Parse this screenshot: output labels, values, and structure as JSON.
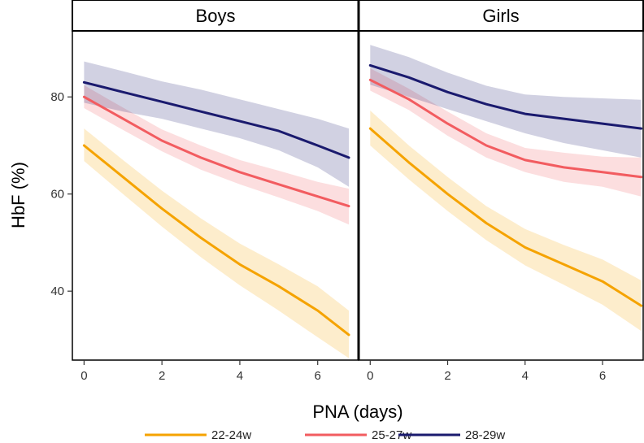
{
  "chart_data": {
    "type": "line",
    "xlabel": "PNA (days)",
    "ylabel": "HbF (%)",
    "xlim": [
      -0.3,
      7.05
    ],
    "ylim": [
      25.8,
      93.6
    ],
    "xticks": [
      0,
      2,
      4,
      6
    ],
    "yticks": [
      40,
      60,
      80
    ],
    "band_color_opacity": 0.2,
    "series_meta": [
      {
        "name": "22-24w",
        "color": "#f5a300"
      },
      {
        "name": "25-27w",
        "color": "#f25c60"
      },
      {
        "name": "28-29w",
        "color": "#1a1a6e"
      }
    ],
    "panels": [
      {
        "title": "Boys",
        "series": [
          {
            "name": "22-24w",
            "x": [
              0,
              1,
              2,
              3,
              4,
              5,
              6,
              6.8
            ],
            "y": [
              70,
              63.5,
              57,
              51,
              45.5,
              41,
              36,
              31
            ],
            "lower": [
              66.8,
              60,
              53.3,
              47,
              41.2,
              36,
              30.5,
              26.2
            ],
            "upper": [
              73.5,
              67,
              60.7,
              55,
              49.8,
              45.5,
              41,
              36
            ]
          },
          {
            "name": "25-27w",
            "x": [
              0,
              1,
              2,
              3,
              4,
              5,
              6,
              6.8
            ],
            "y": [
              80,
              75.5,
              71,
              67.5,
              64.5,
              62,
              59.5,
              57.5
            ],
            "lower": [
              77.7,
              73.2,
              68.8,
              65,
              62,
              59.3,
              56.5,
              53.7
            ],
            "upper": [
              82.4,
              77.8,
              73.3,
              70,
              67,
              64.8,
              62.5,
              61.1
            ]
          },
          {
            "name": "28-29w",
            "x": [
              0,
              1,
              2,
              3,
              4,
              5,
              6,
              6.8
            ],
            "y": [
              83,
              81,
              79,
              77,
              75,
              73,
              70,
              67.5
            ],
            "lower": [
              78.8,
              77,
              75.5,
              73.5,
              71.5,
              69,
              65.5,
              61.5
            ],
            "upper": [
              87.3,
              85.3,
              83.2,
              81.5,
              79.5,
              77.5,
              75.5,
              73.5
            ]
          }
        ]
      },
      {
        "title": "Girls",
        "series": [
          {
            "name": "22-24w",
            "x": [
              0,
              1,
              2,
              3,
              4,
              5,
              6,
              7
            ],
            "y": [
              73.5,
              66.5,
              60,
              54,
              49,
              45.5,
              42,
              37
            ],
            "lower": [
              70,
              63,
              56.5,
              50.5,
              45.3,
              41.3,
              37.2,
              31.8
            ],
            "upper": [
              77.2,
              70,
              63.5,
              57.5,
              52.8,
              49.5,
              46.5,
              42.2
            ]
          },
          {
            "name": "25-27w",
            "x": [
              0,
              1,
              2,
              3,
              4,
              5,
              6,
              7
            ],
            "y": [
              83.5,
              79.5,
              74.5,
              70,
              67,
              65.5,
              64.5,
              63.5
            ],
            "lower": [
              81.3,
              77.3,
              72,
              67.5,
              64.5,
              62.5,
              61.5,
              59.5
            ],
            "upper": [
              85.9,
              81.7,
              77,
              72.5,
              69.5,
              68.5,
              67.7,
              67.5
            ]
          },
          {
            "name": "28-29w",
            "x": [
              0,
              1,
              2,
              3,
              4,
              5,
              6,
              7
            ],
            "y": [
              86.5,
              84,
              81,
              78.5,
              76.5,
              75.5,
              74.5,
              73.5
            ],
            "lower": [
              82.5,
              80,
              77.5,
              75,
              72.5,
              70.5,
              69,
              67.5
            ],
            "upper": [
              90.7,
              88.2,
              85,
              82.3,
              80.5,
              80,
              79.7,
              79.4
            ]
          }
        ]
      }
    ]
  }
}
